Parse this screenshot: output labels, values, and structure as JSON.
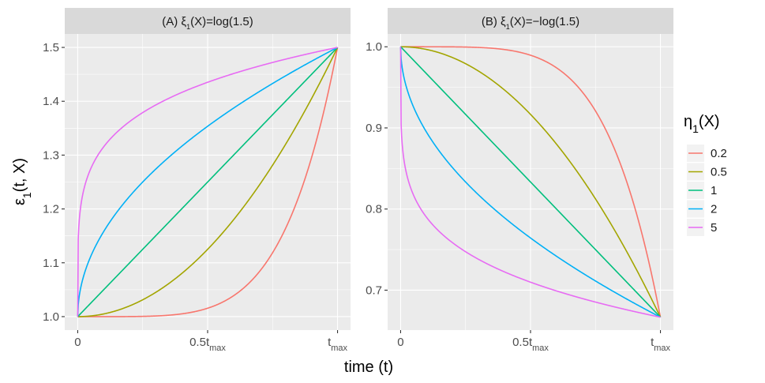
{
  "chart_data": [
    {
      "type": "line",
      "panel_label": "(A) ξ₁(X)=log(1.5)",
      "strip_prefix": "(A) ξ",
      "strip_sub": "1",
      "strip_suffix": "(X)=log(1.5)",
      "x_ticks": [
        {
          "value": 0,
          "main": "0",
          "sub": ""
        },
        {
          "value": 0.5,
          "main": "0.5t",
          "sub": "max"
        },
        {
          "value": 1,
          "main": "t",
          "sub": "max"
        }
      ],
      "y_ticks": [
        "1.0",
        "1.1",
        "1.2",
        "1.3",
        "1.4",
        "1.5"
      ],
      "xlim": [
        -0.05,
        1.05
      ],
      "ylim": [
        0.975,
        1.525
      ],
      "start": 1.0,
      "end": 1.5,
      "series": [
        {
          "name": "0.2",
          "eta": 0.2
        },
        {
          "name": "0.5",
          "eta": 0.5
        },
        {
          "name": "1",
          "eta": 1
        },
        {
          "name": "2",
          "eta": 2
        },
        {
          "name": "5",
          "eta": 5
        }
      ]
    },
    {
      "type": "line",
      "panel_label": "(B) ξ₁(X)=−log(1.5)",
      "strip_prefix": "(B) ξ",
      "strip_sub": "1",
      "strip_suffix": "(X)=−log(1.5)",
      "x_ticks": [
        {
          "value": 0,
          "main": "0",
          "sub": ""
        },
        {
          "value": 0.5,
          "main": "0.5t",
          "sub": "max"
        },
        {
          "value": 1,
          "main": "t",
          "sub": "max"
        }
      ],
      "y_ticks": [
        "0.7",
        "0.8",
        "0.9",
        "1.0"
      ],
      "xlim": [
        -0.05,
        1.05
      ],
      "ylim": [
        0.6508,
        1.0158
      ],
      "start": 1.0,
      "end": 0.6667,
      "series": [
        {
          "name": "0.2",
          "eta": 0.2
        },
        {
          "name": "0.5",
          "eta": 0.5
        },
        {
          "name": "1",
          "eta": 1
        },
        {
          "name": "2",
          "eta": 2
        },
        {
          "name": "5",
          "eta": 5
        }
      ]
    }
  ],
  "axes": {
    "xlabel": "time (t)",
    "ylabel_main": "ε",
    "ylabel_sub": "1",
    "ylabel_rest": "(t, X)"
  },
  "legend": {
    "title_main": "η",
    "title_sub": "1",
    "title_rest": "(X)",
    "items": [
      {
        "label": "0.2",
        "color": "#F8766D"
      },
      {
        "label": "0.5",
        "color": "#A3A500"
      },
      {
        "label": "1",
        "color": "#00BF7D"
      },
      {
        "label": "2",
        "color": "#00B0F6"
      },
      {
        "label": "5",
        "color": "#E76BF3"
      }
    ]
  },
  "colors": {
    "panel_bg": "#EBEBEB",
    "strip_bg": "#D9D9D9",
    "grid_major": "#FFFFFF"
  }
}
